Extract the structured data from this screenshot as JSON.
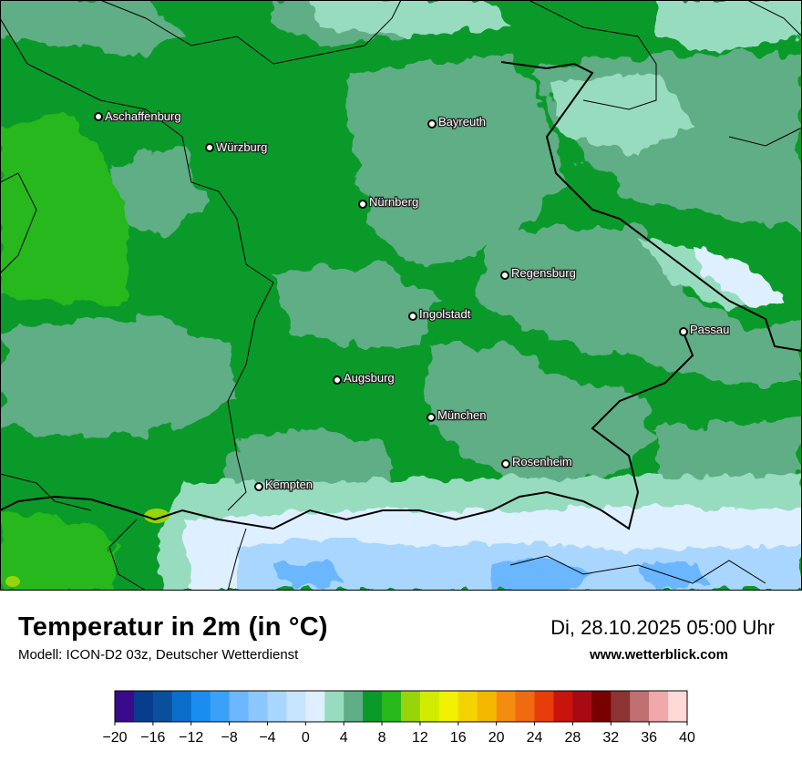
{
  "map": {
    "cities": [
      {
        "name": "Aschaffenburg"
      },
      {
        "name": "Würzburg"
      },
      {
        "name": "Bayreuth"
      },
      {
        "name": "Nürnberg"
      },
      {
        "name": "Regensburg"
      },
      {
        "name": "Ingolstadt"
      },
      {
        "name": "Passau"
      },
      {
        "name": "Augsburg"
      },
      {
        "name": "München"
      },
      {
        "name": "Rosenheim"
      },
      {
        "name": "Kempten"
      }
    ]
  },
  "footer": {
    "title": "Temperatur in 2m (in °C)",
    "subtitle": "Modell: ICON-D2 03z, Deutscher Wetterdienst",
    "datetime": "Di, 28.10.2025 05:00 Uhr",
    "website": "www.wetterblick.com"
  },
  "legend": {
    "min": -20,
    "max": 40,
    "tick_labels": [
      "−20",
      "−16",
      "−12",
      "−8",
      "−4",
      "0",
      "4",
      "8",
      "12",
      "16",
      "20",
      "24",
      "28",
      "32",
      "36",
      "40"
    ],
    "colors": [
      "#3a0a8c",
      "#083c8c",
      "#0a4f9e",
      "#0a6ecb",
      "#1a8ef0",
      "#3aa0f8",
      "#6bb6ff",
      "#8cc6ff",
      "#a9d6ff",
      "#c7e4ff",
      "#deefff",
      "#98dcc0",
      "#5fae85",
      "#0a9a2a",
      "#27b81b",
      "#98d40a",
      "#d2ec00",
      "#f0f000",
      "#f4d400",
      "#f4b800",
      "#f48c10",
      "#f06a10",
      "#e83c0a",
      "#c8140a",
      "#a80a14",
      "#780000",
      "#8c3434",
      "#c07070",
      "#f0a8a8",
      "#ffd8d8"
    ]
  }
}
